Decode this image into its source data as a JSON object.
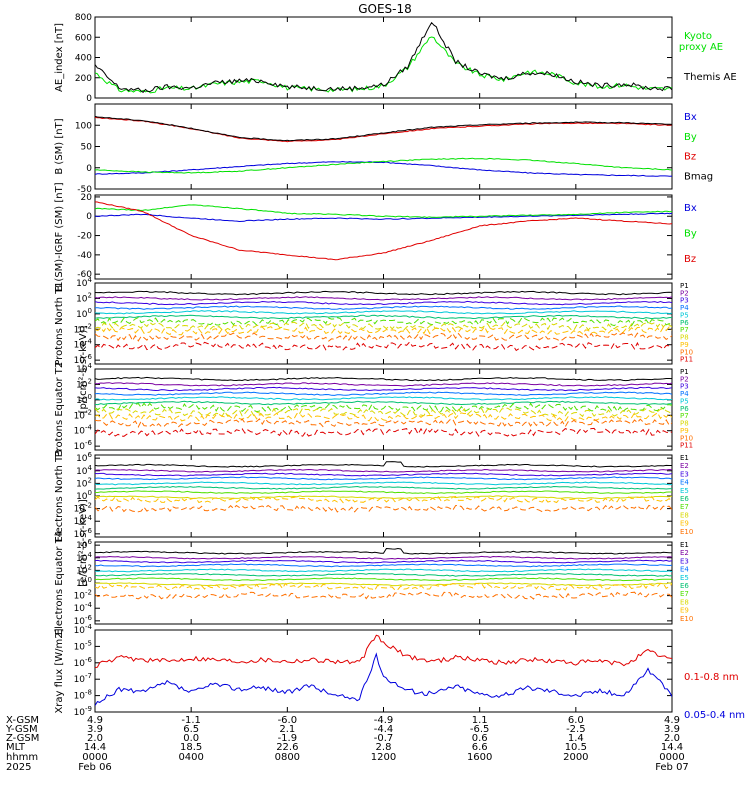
{
  "title": "GOES-18",
  "colors": {
    "black": "#000000",
    "green": "#00e000",
    "red": "#e00000",
    "blue": "#0000dd",
    "proton_series": [
      "#000000",
      "#7a00a0",
      "#3a00e0",
      "#0070ff",
      "#00c8d8",
      "#00c070",
      "#50e000",
      "#d8d800",
      "#ffc000",
      "#ff7000",
      "#e00000"
    ],
    "electron_series": [
      "#000000",
      "#7a00a0",
      "#3a00e0",
      "#0070ff",
      "#00c8d8",
      "#00c070",
      "#50e000",
      "#d8d800",
      "#ffc000",
      "#ff7000",
      "#e00000"
    ]
  },
  "chart_data": [
    {
      "type": "line",
      "ylabel": "AE_index [nT]",
      "ylim": [
        0,
        800
      ],
      "ticks": [
        "800",
        "600",
        "400",
        "200",
        "0"
      ],
      "legend": [
        "Kyoto proxy AE",
        "Themis AE"
      ],
      "legend_lines": [
        [
          "Kyoto",
          "proxy AE"
        ],
        [
          "Themis AE"
        ]
      ],
      "series": [
        {
          "name": "Kyoto proxy AE",
          "color": "green",
          "x": [
            0,
            1,
            2,
            3,
            4,
            5,
            6,
            7,
            8,
            9,
            10,
            11,
            12,
            13,
            14,
            15,
            16,
            17,
            18,
            19,
            20,
            21,
            22,
            23,
            24
          ],
          "values": [
            250,
            80,
            60,
            100,
            90,
            140,
            160,
            170,
            100,
            90,
            80,
            90,
            120,
            300,
            620,
            340,
            230,
            180,
            260,
            240,
            150,
            110,
            130,
            90,
            90
          ]
        },
        {
          "name": "Themis AE",
          "color": "black",
          "x": [
            0,
            1,
            2,
            3,
            4,
            5,
            6,
            7,
            8,
            9,
            10,
            11,
            12,
            13,
            14,
            15,
            16,
            17,
            18,
            19,
            20,
            21,
            22,
            23,
            24
          ],
          "values": [
            320,
            100,
            70,
            110,
            100,
            150,
            170,
            170,
            110,
            100,
            90,
            100,
            130,
            310,
            760,
            360,
            240,
            190,
            250,
            240,
            160,
            120,
            140,
            100,
            90
          ]
        }
      ]
    },
    {
      "type": "line",
      "ylabel": "B (SM) [nT]",
      "ylim": [
        -50,
        150
      ],
      "ticks": [
        "100",
        "50",
        "0",
        "-50"
      ],
      "legend": [
        "Bx",
        "By",
        "Bz",
        "Bmag"
      ],
      "series": [
        {
          "name": "Bx",
          "color": "blue",
          "x": [
            0,
            2,
            4,
            6,
            8,
            10,
            12,
            14,
            16,
            18,
            20,
            22,
            24
          ],
          "values": [
            -15,
            -12,
            -5,
            3,
            10,
            14,
            13,
            5,
            -5,
            -12,
            -16,
            -18,
            -20
          ]
        },
        {
          "name": "By",
          "color": "green",
          "x": [
            0,
            2,
            4,
            6,
            8,
            10,
            12,
            14,
            16,
            18,
            20,
            22,
            24
          ],
          "values": [
            -5,
            -10,
            -12,
            -8,
            0,
            8,
            15,
            20,
            22,
            18,
            10,
            0,
            -5
          ]
        },
        {
          "name": "Bz",
          "color": "red",
          "x": [
            0,
            2,
            4,
            6,
            8,
            10,
            12,
            14,
            16,
            18,
            20,
            22,
            24
          ],
          "values": [
            118,
            110,
            92,
            70,
            62,
            66,
            80,
            92,
            98,
            103,
            105,
            104,
            100
          ]
        },
        {
          "name": "Bmag",
          "color": "black",
          "x": [
            0,
            2,
            4,
            6,
            8,
            10,
            12,
            14,
            16,
            18,
            20,
            22,
            24
          ],
          "values": [
            120,
            111,
            93,
            71,
            64,
            68,
            82,
            95,
            101,
            105,
            107,
            106,
            102
          ]
        }
      ]
    },
    {
      "type": "line",
      "ylabel": "B (SM)-IGRF (SM) [nT]",
      "ylim": [
        -65,
        22
      ],
      "ticks": [
        "20",
        "0",
        "-20",
        "-40",
        "-60"
      ],
      "legend": [
        "Bx",
        "By",
        "Bz"
      ],
      "series": [
        {
          "name": "Bx",
          "color": "blue",
          "x": [
            0,
            2,
            4,
            6,
            8,
            10,
            12,
            14,
            16,
            18,
            20,
            22,
            24
          ],
          "values": [
            0,
            2,
            -2,
            -5,
            -3,
            -2,
            -3,
            -2,
            -1,
            0,
            1,
            2,
            3
          ]
        },
        {
          "name": "By",
          "color": "green",
          "x": [
            0,
            2,
            4,
            6,
            8,
            10,
            12,
            14,
            16,
            18,
            20,
            22,
            24
          ],
          "values": [
            8,
            6,
            12,
            8,
            3,
            2,
            0,
            -1,
            0,
            1,
            2,
            4,
            5
          ]
        },
        {
          "name": "Bz",
          "color": "red",
          "x": [
            0,
            2,
            4,
            6,
            8,
            10,
            12,
            14,
            16,
            18,
            20,
            22,
            24
          ],
          "values": [
            15,
            5,
            -20,
            -35,
            -40,
            -45,
            -38,
            -25,
            -10,
            -5,
            -2,
            -5,
            -8
          ]
        }
      ]
    },
    {
      "type": "line",
      "ylabel": "Protons North T1",
      "log": true,
      "ylim": [
        -6.5,
        4
      ],
      "ticks": [
        "10^4",
        "10^2",
        "10^0",
        "10^-2",
        "10^-4",
        "10^-6"
      ],
      "legend": [
        "P1",
        "P2",
        "P3",
        "P4",
        "P5",
        "P6",
        "P7",
        "P8",
        "P9",
        "P10",
        "P11"
      ],
      "levels": [
        2.7,
        2.0,
        1.4,
        0.8,
        0.2,
        -0.4,
        -1.0,
        -1.6,
        -2.2,
        -3.0,
        -4.2
      ]
    },
    {
      "type": "line",
      "ylabel": "Protons Equator T2",
      "unit_label": "[p/(cm²-s-sr-keV)]",
      "log": true,
      "ylim": [
        -6.5,
        4
      ],
      "ticks": [
        "10^4",
        "10^2",
        "10^0",
        "10^-2",
        "10^-4",
        "10^-6"
      ],
      "legend": [
        "P1",
        "P2",
        "P3",
        "P4",
        "P5",
        "P6",
        "P7",
        "P8",
        "P9",
        "P10",
        "P11"
      ],
      "levels": [
        2.7,
        2.0,
        1.4,
        0.8,
        0.2,
        -0.4,
        -1.0,
        -1.6,
        -2.2,
        -3.0,
        -4.2
      ]
    },
    {
      "type": "line",
      "ylabel": "Electrons North T3",
      "log": true,
      "ylim": [
        -6.5,
        6.5
      ],
      "ticks": [
        "10^6",
        "10^4",
        "10^2",
        "10^0",
        "10^-2",
        "10^-4",
        "10^-6"
      ],
      "legend": [
        "E1",
        "E2",
        "E3",
        "E4",
        "E5",
        "E6",
        "E7",
        "E8",
        "E9",
        "E10"
      ],
      "levels": [
        4.8,
        4.0,
        3.4,
        2.8,
        2.0,
        1.3,
        0.6,
        -0.2,
        -0.6,
        -2.0
      ]
    },
    {
      "type": "line",
      "ylabel": "Electrons Equator T4",
      "unit_label": "[e/(cm²-s-sr-keV)]",
      "log": true,
      "ylim": [
        -6.5,
        6.5
      ],
      "ticks": [
        "10^6",
        "10^4",
        "10^2",
        "10^0",
        "10^-2",
        "10^-4",
        "10^-6"
      ],
      "legend": [
        "E1",
        "E2",
        "E3",
        "E4",
        "E5",
        "E6",
        "E7",
        "E8",
        "E9",
        "E10"
      ],
      "levels": [
        4.8,
        4.0,
        3.4,
        2.8,
        2.0,
        1.3,
        0.6,
        -0.2,
        -0.6,
        -2.0
      ]
    },
    {
      "type": "line",
      "ylabel": "Xray flux [W/m2]",
      "log": true,
      "ylim": [
        -9,
        -4
      ],
      "ticks": [
        "10^-4",
        "10^-5",
        "10^-6",
        "10^-7",
        "10^-8",
        "10^-9"
      ],
      "legend": [
        "0.1-0.8 nm",
        "0.05-0.4 nm"
      ],
      "series": [
        {
          "name": "0.1-0.8 nm",
          "color": "red",
          "x": [
            0,
            1,
            2,
            3,
            4,
            5,
            6,
            7,
            8,
            9,
            10,
            11,
            11.7,
            12,
            13,
            14,
            15,
            16,
            17,
            18,
            19,
            20,
            21,
            22,
            23,
            24
          ],
          "values": [
            -6.2,
            -5.7,
            -5.8,
            -5.9,
            -5.7,
            -5.8,
            -5.9,
            -5.8,
            -5.9,
            -5.8,
            -5.9,
            -6.0,
            -4.3,
            -4.8,
            -5.6,
            -5.9,
            -5.7,
            -5.8,
            -6.0,
            -5.8,
            -5.9,
            -6.0,
            -5.9,
            -6.1,
            -5.3,
            -5.8
          ]
        },
        {
          "name": "0.05-0.4 nm",
          "color": "blue",
          "x": [
            0,
            1,
            2,
            3,
            4,
            5,
            6,
            7,
            8,
            9,
            10,
            11,
            11.7,
            12,
            13,
            14,
            15,
            16,
            17,
            18,
            19,
            20,
            21,
            22,
            23,
            24
          ],
          "values": [
            -8.6,
            -7.6,
            -7.8,
            -7.2,
            -7.8,
            -7.3,
            -7.6,
            -7.5,
            -7.8,
            -7.4,
            -8.0,
            -8.2,
            -5.6,
            -6.8,
            -7.7,
            -7.9,
            -7.4,
            -7.9,
            -8.0,
            -7.5,
            -7.7,
            -8.0,
            -7.7,
            -8.0,
            -6.4,
            -8.0
          ]
        }
      ]
    }
  ],
  "xaxis": {
    "row_labels": [
      "X-GSM",
      "Y-GSM",
      "Z-GSM",
      "MLT",
      "hhmm",
      "2025"
    ],
    "columns": [
      {
        "values": [
          "4.9",
          "3.9",
          "2.0",
          "14.4",
          "0000",
          "Feb 06"
        ]
      },
      {
        "values": [
          "-1.1",
          "6.5",
          "0.0",
          "18.5",
          "0400",
          ""
        ]
      },
      {
        "values": [
          "-6.0",
          "2.1",
          "-1.9",
          "22.6",
          "0800",
          ""
        ]
      },
      {
        "values": [
          "-4.9",
          "-4.4",
          "-0.7",
          "2.8",
          "1200",
          ""
        ]
      },
      {
        "values": [
          "1.1",
          "-6.5",
          "0.6",
          "6.6",
          "1600",
          ""
        ]
      },
      {
        "values": [
          "6.0",
          "-2.5",
          "1.4",
          "10.5",
          "2000",
          ""
        ]
      },
      {
        "values": [
          "4.9",
          "3.9",
          "2.0",
          "14.4",
          "0000",
          "Feb 07"
        ]
      }
    ]
  }
}
